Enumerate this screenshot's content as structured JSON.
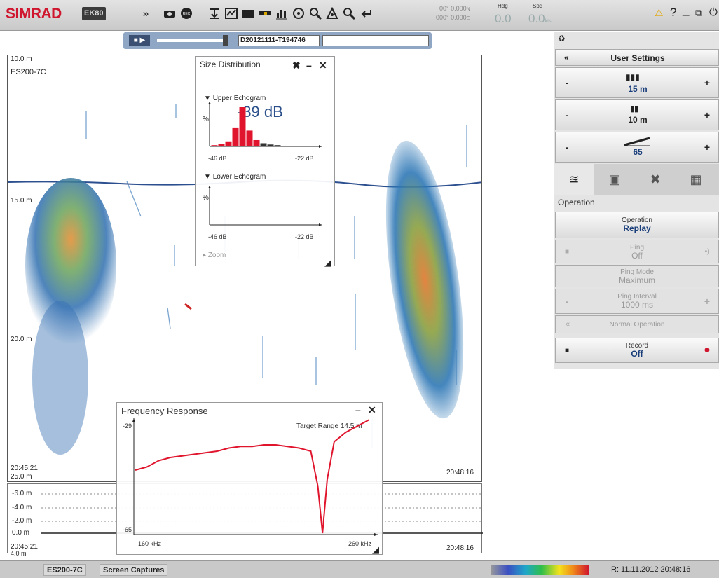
{
  "app": {
    "logo": "SIMRAD",
    "product": "EK80"
  },
  "navigation": {
    "position_top": "00° 0.000",
    "position_top_unit": "N",
    "position_bottom": "000° 0.000",
    "position_bottom_unit": "E",
    "heading_label": "Hdg",
    "heading_value": "0.0",
    "speed_label": "Spd",
    "speed_value": "0.0",
    "speed_unit": "kts"
  },
  "window_buttons": {
    "help": "?",
    "minimize": "_"
  },
  "replay": {
    "filename": "D20121111-T194746"
  },
  "echogram": {
    "top_range": "10.0 m",
    "channel": "ES200-7C",
    "depth_15": "15.0 m",
    "depth_20": "20.0 m",
    "depth_25": "25.0 m",
    "time_left": "20:45:21",
    "time_right": "20:48:16",
    "lower": {
      "tick_6": "-6.0 m",
      "tick_4": "-4.0 m",
      "tick_2": "-2.0 m",
      "tick_0": "0.0 m",
      "bottom_depth": "4.0 m",
      "time_left": "20:45:21",
      "time_right": "20:48:16"
    }
  },
  "size_distribution": {
    "title": "Size Distribution",
    "upper_label": "Upper Echogram",
    "lower_label": "Lower Echogram",
    "value": "-39 dB",
    "y_unit": "%",
    "x_min": "-46 dB",
    "x_max": "-22 dB",
    "collapsed_item": "Zoom",
    "upper_histogram_percent": [
      2,
      4,
      8,
      30,
      62,
      25,
      10,
      5,
      3,
      2,
      1,
      1,
      1,
      1,
      1
    ]
  },
  "frequency_response": {
    "title": "Frequency Response",
    "y_top": "-29",
    "y_bottom": "-65",
    "target_range_label": "Target Range",
    "target_range_value": "14.5 m",
    "x_min": "160 kHz",
    "x_max": "260 kHz",
    "chart_data": {
      "type": "line",
      "x": [
        160,
        165,
        170,
        175,
        180,
        185,
        190,
        195,
        200,
        205,
        210,
        215,
        220,
        225,
        230,
        235,
        238,
        240,
        242,
        245,
        250,
        255,
        260
      ],
      "y": [
        -45,
        -44,
        -42,
        -41,
        -40.5,
        -40,
        -39.5,
        -39,
        -38,
        -37.5,
        -37.5,
        -37,
        -37,
        -37.5,
        -38,
        -39,
        -50,
        -65,
        -48,
        -36,
        -33,
        -31,
        -29
      ],
      "xlim": [
        160,
        260
      ],
      "ylim": [
        -65,
        -29
      ],
      "series": [
        {
          "name": "",
          "color": "#e0152d"
        }
      ]
    }
  },
  "right_panel": {
    "user_settings": "User Settings",
    "range_value": "15 m",
    "start_value": "10 m",
    "gain_value": "65",
    "minus": "-",
    "plus": "+",
    "section": "Operation",
    "operation_label": "Operation",
    "operation_value": "Replay",
    "ping_label": "Ping",
    "ping_value": "Off",
    "ping_mode_label": "Ping Mode",
    "ping_mode_value": "Maximum",
    "ping_interval_label": "Ping Interval",
    "ping_interval_value": "1000 ms",
    "normal_operation": "Normal Operation",
    "record_label": "Record",
    "record_value": "Off"
  },
  "status_bar": {
    "channel": "ES200-7C",
    "captures": "Screen Captures",
    "timestamp": "R: 11.11.2012  20:48:16"
  },
  "colors": {
    "brand_red": "#d0162e",
    "accent_blue": "#1a3e7a",
    "curve_red": "#e0152d"
  }
}
